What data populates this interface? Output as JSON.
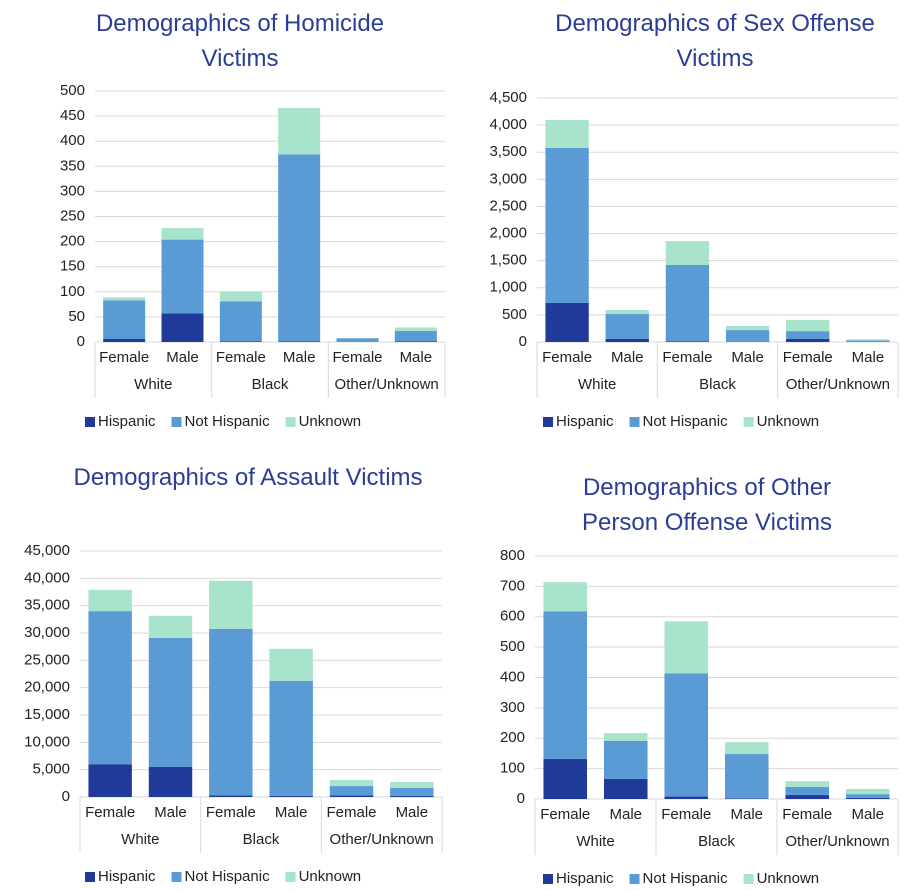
{
  "chart_data": [
    {
      "type": "bar",
      "stacked": true,
      "title": "Demographics of Homicide Victims",
      "categories": [
        "Female",
        "Male",
        "Female",
        "Male",
        "Female",
        "Male"
      ],
      "groups": [
        "White",
        "Black",
        "Other/Unknown"
      ],
      "series": [
        {
          "name": "Hispanic",
          "color": "#203a9a",
          "values": [
            6,
            57,
            1,
            1,
            0,
            1
          ]
        },
        {
          "name": "Not Hispanic",
          "color": "#5b9bd5",
          "values": [
            77,
            147,
            80,
            373,
            7,
            21
          ]
        },
        {
          "name": "Unknown",
          "color": "#a8e4cc",
          "values": [
            6,
            23,
            19,
            92,
            1,
            7
          ]
        }
      ],
      "ylim": [
        0,
        500
      ],
      "yticks": [
        0,
        50,
        100,
        150,
        200,
        250,
        300,
        350,
        400,
        450,
        500
      ],
      "grid": true,
      "legend": "bottom"
    },
    {
      "type": "bar",
      "stacked": true,
      "title": "Demographics of Sex Offense Victims",
      "categories": [
        "Female",
        "Male",
        "Female",
        "Male",
        "Female",
        "Male"
      ],
      "groups": [
        "White",
        "Black",
        "Other/Unknown"
      ],
      "series": [
        {
          "name": "Hispanic",
          "color": "#203a9a",
          "values": [
            720,
            60,
            10,
            5,
            60,
            5
          ]
        },
        {
          "name": "Not Hispanic",
          "color": "#5b9bd5",
          "values": [
            2860,
            456,
            1410,
            215,
            140,
            25
          ]
        },
        {
          "name": "Unknown",
          "color": "#a8e4cc",
          "values": [
            516,
            74,
            440,
            75,
            205,
            20
          ]
        }
      ],
      "ylim": [
        0,
        4500
      ],
      "yticks": [
        0,
        500,
        {
          "value": 1000,
          "label": "1,000"
        },
        {
          "value": 1500,
          "label": "1,500"
        },
        {
          "value": 2000,
          "label": "2,000"
        },
        {
          "value": 2500,
          "label": "2,500"
        },
        {
          "value": 3000,
          "label": "3,000"
        },
        {
          "value": 3500,
          "label": "3,500"
        },
        {
          "value": 4000,
          "label": "4,000"
        },
        {
          "value": 4500,
          "label": "4,500"
        }
      ],
      "grid": true,
      "legend": "bottom"
    },
    {
      "type": "bar",
      "stacked": true,
      "title": "Demographics of Assault Victims",
      "categories": [
        "Female",
        "Male",
        "Female",
        "Male",
        "Female",
        "Male"
      ],
      "groups": [
        "White",
        "Black",
        "Other/Unknown"
      ],
      "series": [
        {
          "name": "Hispanic",
          "color": "#203a9a",
          "values": [
            6000,
            5500,
            300,
            200,
            300,
            200
          ]
        },
        {
          "name": "Not Hispanic",
          "color": "#5b9bd5",
          "values": [
            28000,
            23600,
            30470,
            21050,
            1700,
            1450
          ]
        },
        {
          "name": "Unknown",
          "color": "#a8e4cc",
          "values": [
            3900,
            4050,
            8800,
            5850,
            1100,
            1100
          ]
        }
      ],
      "ylim": [
        0,
        45000
      ],
      "yticks": [
        0,
        {
          "value": 5000,
          "label": "5,000"
        },
        {
          "value": 10000,
          "label": "10,000"
        },
        {
          "value": 15000,
          "label": "15,000"
        },
        {
          "value": 20000,
          "label": "20,000"
        },
        {
          "value": 25000,
          "label": "25,000"
        },
        {
          "value": 30000,
          "label": "30,000"
        },
        {
          "value": 35000,
          "label": "35,000"
        },
        {
          "value": 40000,
          "label": "40,000"
        },
        {
          "value": 45000,
          "label": "45,000"
        }
      ],
      "grid": true,
      "legend": "bottom"
    },
    {
      "type": "bar",
      "stacked": true,
      "title": "Demographics of Other Person Offense Victims",
      "categories": [
        "Female",
        "Male",
        "Female",
        "Male",
        "Female",
        "Male"
      ],
      "groups": [
        "White",
        "Black",
        "Other/Unknown"
      ],
      "series": [
        {
          "name": "Hispanic",
          "color": "#203a9a",
          "values": [
            132,
            66,
            8,
            2,
            13,
            4
          ]
        },
        {
          "name": "Not Hispanic",
          "color": "#5b9bd5",
          "values": [
            486,
            125,
            406,
            146,
            27,
            12
          ]
        },
        {
          "name": "Unknown",
          "color": "#a8e4cc",
          "values": [
            96,
            26,
            171,
            39,
            19,
            17
          ]
        }
      ],
      "ylim": [
        0,
        800
      ],
      "yticks": [
        0,
        100,
        200,
        300,
        400,
        500,
        600,
        700,
        800
      ],
      "grid": true,
      "legend": "bottom"
    }
  ]
}
